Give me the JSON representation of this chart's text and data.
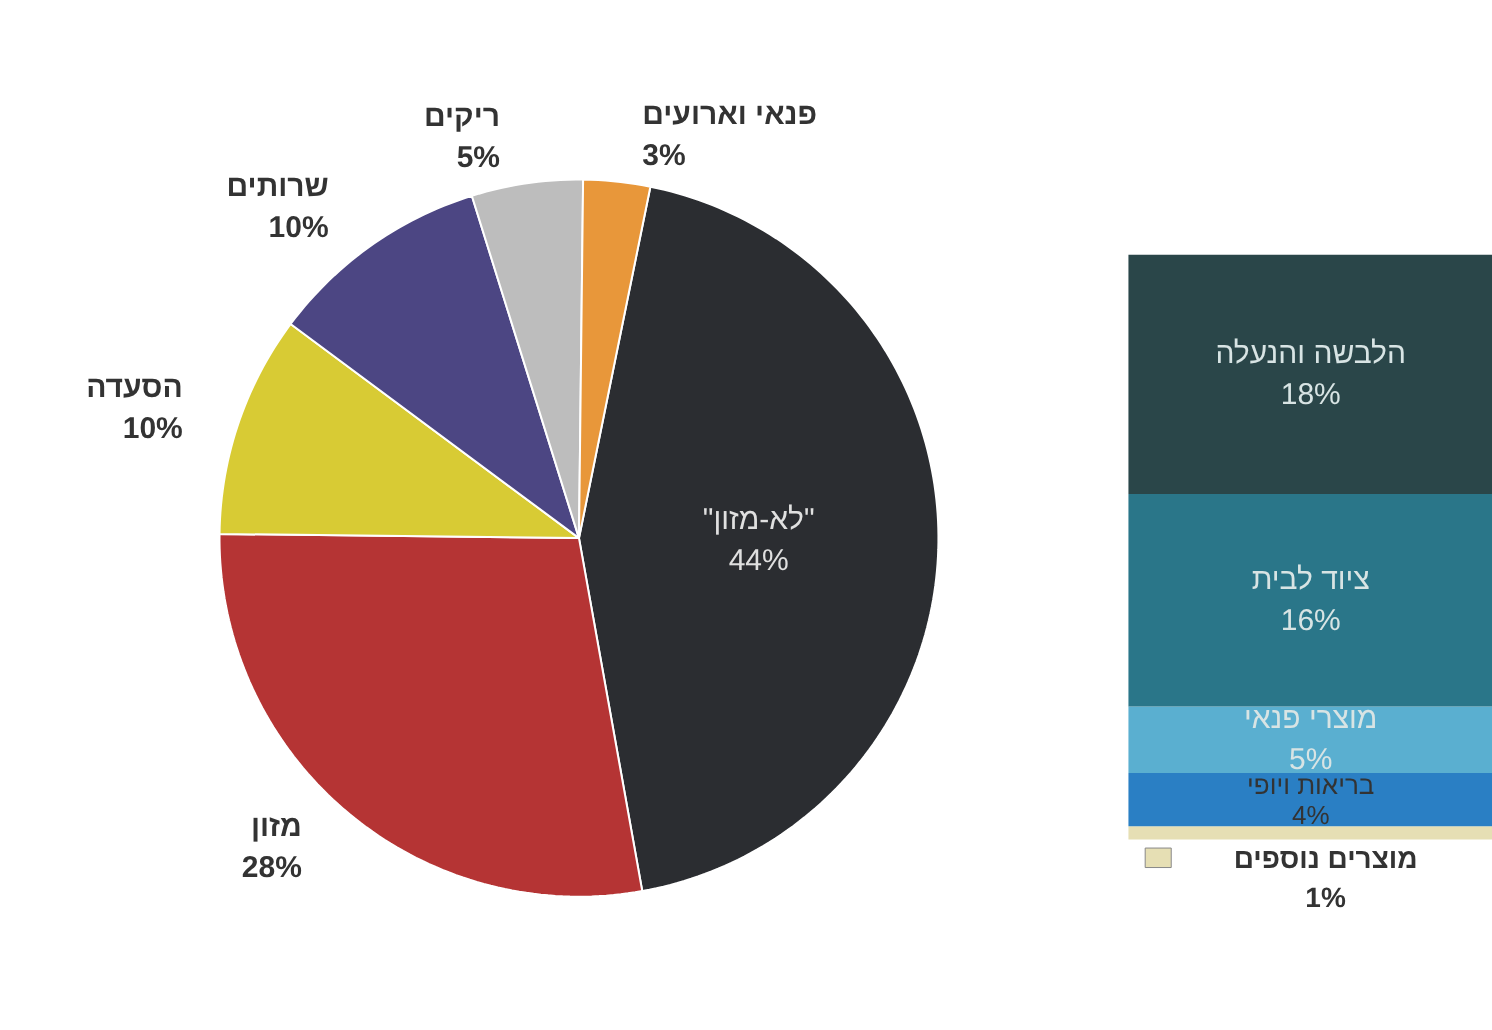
{
  "chart_data": [
    {
      "type": "pie",
      "categories": [
        "\"לא-מזון\"",
        "מזון",
        "הסעדה",
        "שרותים",
        "ריקים",
        "פנאי וארועים"
      ],
      "values": [
        44,
        28,
        10,
        10,
        5,
        3
      ],
      "colors": [
        "#2b2d31",
        "#b53434",
        "#d8cb34",
        "#4c4683",
        "#bdbdbd",
        "#e8973a"
      ],
      "value_labels": [
        "44%",
        "28%",
        "10%",
        "10%",
        "5%",
        "3%"
      ]
    },
    {
      "type": "bar",
      "stacked": true,
      "categories": [
        null
      ],
      "series": [
        {
          "name": "מוצרים נוספים",
          "color": "#e6dfb4",
          "values": [
            1
          ],
          "value_labels": [
            "1%"
          ]
        },
        {
          "name": "בריאות ויופי",
          "color": "#2a7fc4",
          "values": [
            4
          ],
          "value_labels": [
            "4%"
          ]
        },
        {
          "name": "מוצרי פנאי",
          "color": "#5aafd0",
          "values": [
            5
          ],
          "value_labels": [
            "5%"
          ]
        },
        {
          "name": "ציוד לבית",
          "color": "#2a7689",
          "values": [
            16
          ],
          "value_labels": [
            "16%"
          ]
        },
        {
          "name": "הלבשה והנעלה",
          "color": "#2a4649",
          "values": [
            18
          ],
          "value_labels": [
            "18%"
          ]
        }
      ]
    }
  ]
}
